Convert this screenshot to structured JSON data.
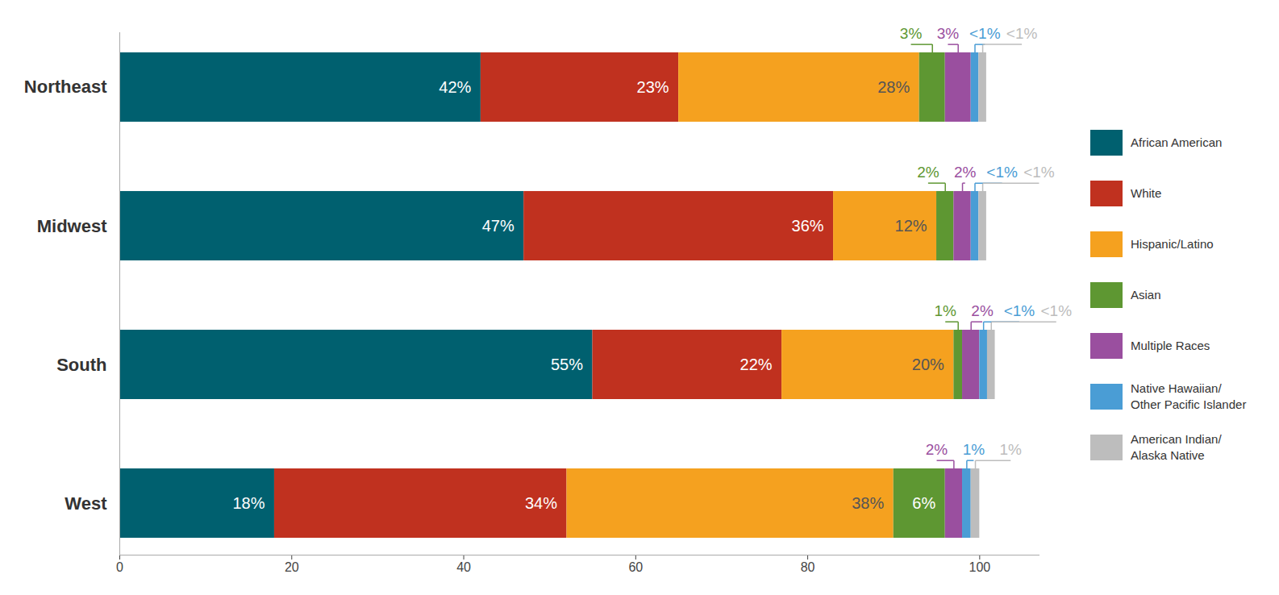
{
  "chart_data": {
    "type": "bar",
    "orientation": "horizontal",
    "stacked": true,
    "data_labels": true,
    "legend": "right",
    "grid": false,
    "categories": [
      "Northeast",
      "Midwest",
      "South",
      "West"
    ],
    "xlim": [
      0,
      107
    ],
    "xticks": [
      0,
      20,
      40,
      60,
      80,
      100
    ],
    "series": [
      {
        "name": "African American",
        "color": "#00606f",
        "values": [
          42,
          47,
          55,
          18
        ],
        "value_labels": [
          "42%",
          "47%",
          "55%",
          "18%"
        ]
      },
      {
        "name": "White",
        "color": "#c0311f",
        "values": [
          23,
          36,
          22,
          34
        ],
        "value_labels": [
          "23%",
          "36%",
          "22%",
          "34%"
        ]
      },
      {
        "name": "Hispanic/Latino",
        "color": "#f5a11f",
        "values": [
          28,
          12,
          20,
          38
        ],
        "value_labels": [
          "28%",
          "12%",
          "20%",
          "38%"
        ]
      },
      {
        "name": "Asian",
        "color": "#5e9732",
        "values": [
          3,
          2,
          1,
          6
        ],
        "value_labels": [
          "3%",
          "2%",
          "1%",
          "6%"
        ]
      },
      {
        "name": "Multiple Races",
        "color": "#9a4f9f",
        "values": [
          3,
          2,
          2,
          2
        ],
        "value_labels": [
          "3%",
          "2%",
          "2%",
          "2%"
        ]
      },
      {
        "name": "Native Hawaiian/Other Pacific Islander",
        "color": "#4a9dd5",
        "values": [
          0.9,
          0.9,
          0.9,
          1
        ],
        "value_labels": [
          "<1%",
          "<1%",
          "<1%",
          "1%"
        ]
      },
      {
        "name": "American Indian/Alaska Native",
        "color": "#bdbdbd",
        "values": [
          0.9,
          0.9,
          0.9,
          1
        ],
        "value_labels": [
          "<1%",
          "<1%",
          "<1%",
          "1%"
        ]
      }
    ]
  }
}
